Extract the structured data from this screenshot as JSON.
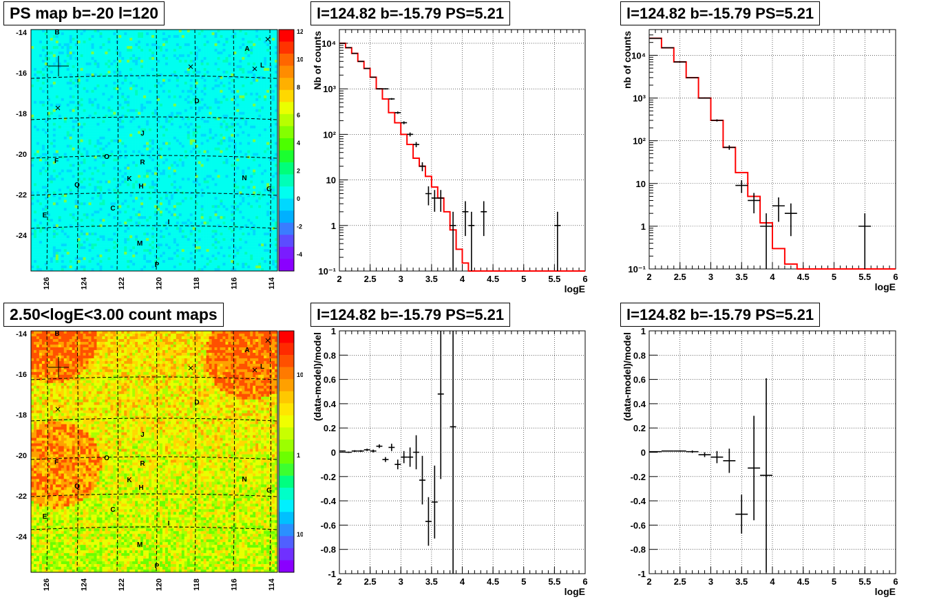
{
  "pads": {
    "map_top": {
      "title": "PS map b=-20 l=120"
    },
    "map_bottom": {
      "title": "2.50<logE<3.00 count maps"
    },
    "spec_a": {
      "title": "l=124.82 b=-15.79 PS=5.21"
    },
    "spec_b": {
      "title": "l=124.82 b=-15.79 PS=5.21"
    },
    "res_a": {
      "title": "l=124.82 b=-15.79 PS=5.21"
    },
    "res_b": {
      "title": "l=124.82 b=-15.79 PS=5.21"
    }
  },
  "colors": {
    "model": "#ff0000",
    "data": "#000000",
    "grid": "#000000"
  },
  "chart_data": [
    {
      "id": "map_top",
      "type": "heatmap",
      "title": "PS map b=-20 l=120",
      "xticks": [
        "126",
        "124",
        "122",
        "120",
        "118",
        "116",
        "114"
      ],
      "yticks": [
        "-14",
        "-16",
        "-18",
        "-20",
        "-22",
        "-24"
      ],
      "zticks": [
        "12",
        "10",
        "8",
        "6",
        "4",
        "2",
        "0",
        "-2",
        "-4"
      ],
      "sources": [
        "A",
        "B",
        "C",
        "D",
        "E",
        "F",
        "G",
        "H",
        "I",
        "J",
        "K",
        "L",
        "M",
        "N",
        "O",
        "P",
        "Q",
        "R"
      ]
    },
    {
      "id": "map_bottom",
      "type": "heatmap",
      "title": "2.50<logE<3.00 count maps",
      "xticks": [
        "126",
        "124",
        "122",
        "120",
        "118",
        "116",
        "114"
      ],
      "yticks": [
        "-14",
        "-16",
        "-18",
        "-20",
        "-22",
        "-24"
      ],
      "zticks": [
        "10",
        "1",
        "10⁻¹"
      ],
      "zscale": "log",
      "sources": [
        "A",
        "B",
        "C",
        "D",
        "E",
        "F",
        "G",
        "H",
        "I",
        "J",
        "K",
        "L",
        "M",
        "N",
        "O",
        "P",
        "Q",
        "R"
      ]
    },
    {
      "id": "spec_a",
      "type": "line",
      "title": "l=124.82 b=-15.79 PS=5.21",
      "xlabel": "logE",
      "ylabel": "Nb of counts",
      "yscale": "log",
      "xlim": [
        2,
        6
      ],
      "ylim": [
        0.1,
        20000
      ],
      "xticks": [
        "2",
        "2.5",
        "3",
        "3.5",
        "4",
        "4.5",
        "5",
        "5.5",
        "6"
      ],
      "yticks": [
        "10⁴",
        "10³",
        "10²",
        "10",
        "1",
        "10⁻¹"
      ],
      "grid": true,
      "series": [
        {
          "kind": "model-step",
          "edges": [
            2,
            2.1,
            2.2,
            2.3,
            2.4,
            2.5,
            2.6,
            2.7,
            2.8,
            2.9,
            3.0,
            3.1,
            3.2,
            3.3,
            3.4,
            3.5,
            3.6,
            3.7,
            3.8,
            3.9,
            4.0,
            4.1,
            4.2,
            6.0
          ],
          "values": [
            10000,
            8000,
            6000,
            4000,
            2800,
            1800,
            1000,
            600,
            300,
            180,
            100,
            60,
            30,
            20,
            12,
            7,
            4,
            2,
            0.8,
            0.3,
            0.15,
            0.1,
            0.1
          ]
        },
        {
          "kind": "data-points",
          "points": [
            [
              2.05,
              10000
            ],
            [
              2.15,
              8000
            ],
            [
              2.25,
              6000
            ],
            [
              2.35,
              4000
            ],
            [
              2.45,
              2800
            ],
            [
              2.55,
              1800
            ],
            [
              2.65,
              1000
            ],
            [
              2.75,
              1000
            ],
            [
              2.85,
              600
            ],
            [
              2.95,
              300
            ],
            [
              3.05,
              180
            ],
            [
              3.15,
              100
            ],
            [
              3.25,
              60
            ],
            [
              3.35,
              20
            ],
            [
              3.45,
              5
            ],
            [
              3.55,
              4
            ],
            [
              3.65,
              4
            ],
            [
              3.85,
              1
            ],
            [
              4.05,
              2
            ],
            [
              4.15,
              1
            ],
            [
              4.35,
              2
            ],
            [
              5.55,
              1
            ]
          ],
          "xerr": 0.05
        }
      ]
    },
    {
      "id": "spec_b",
      "type": "line",
      "title": "l=124.82 b=-15.79 PS=5.21",
      "xlabel": "logE",
      "ylabel": "nb of counts",
      "yscale": "log",
      "xlim": [
        2,
        6
      ],
      "ylim": [
        0.1,
        40000
      ],
      "xticks": [
        "2",
        "2.5",
        "3",
        "3.5",
        "4",
        "4.5",
        "5",
        "5.5",
        "6"
      ],
      "yticks": [
        "10⁴",
        "10³",
        "10²",
        "10",
        "1",
        "10⁻¹"
      ],
      "grid": true,
      "series": [
        {
          "kind": "model-step",
          "edges": [
            2.0,
            2.2,
            2.4,
            2.6,
            2.8,
            3.0,
            3.2,
            3.4,
            3.6,
            3.8,
            4.0,
            4.2,
            4.4,
            6.0
          ],
          "values": [
            25000,
            15000,
            7000,
            3000,
            1000,
            300,
            70,
            18,
            5,
            1.2,
            0.3,
            0.13,
            0.1
          ]
        },
        {
          "kind": "data-points",
          "points": [
            [
              2.1,
              25000
            ],
            [
              2.3,
              15000
            ],
            [
              2.5,
              7000
            ],
            [
              2.7,
              3000
            ],
            [
              2.9,
              1000
            ],
            [
              3.1,
              300
            ],
            [
              3.3,
              70
            ],
            [
              3.5,
              9
            ],
            [
              3.7,
              4
            ],
            [
              3.9,
              1
            ],
            [
              4.1,
              3
            ],
            [
              4.3,
              2
            ],
            [
              5.5,
              1
            ]
          ],
          "xerr": 0.1
        }
      ]
    },
    {
      "id": "res_a",
      "type": "scatter",
      "title": "l=124.82 b=-15.79 PS=5.21",
      "xlabel": "logE",
      "ylabel": "(data-model)/model",
      "xlim": [
        2,
        6
      ],
      "ylim": [
        -1,
        1
      ],
      "xticks": [
        "2",
        "2.5",
        "3",
        "3.5",
        "4",
        "4.5",
        "5",
        "5.5",
        "6"
      ],
      "yticks": [
        "1",
        "0.8",
        "0.6",
        "0.4",
        "0.2",
        "0",
        "-0.2",
        "-0.4",
        "-0.6",
        "-0.8",
        "-1"
      ],
      "grid": true,
      "points": [
        [
          2.05,
          0.01,
          0.005
        ],
        [
          2.15,
          0.0,
          0.006
        ],
        [
          2.25,
          0.01,
          0.007
        ],
        [
          2.35,
          0.01,
          0.008
        ],
        [
          2.45,
          0.02,
          0.01
        ],
        [
          2.55,
          0.01,
          0.012
        ],
        [
          2.65,
          0.05,
          0.015
        ],
        [
          2.75,
          -0.06,
          0.02
        ],
        [
          2.85,
          0.04,
          0.03
        ],
        [
          2.95,
          -0.1,
          0.04
        ],
        [
          3.05,
          -0.04,
          0.05
        ],
        [
          3.15,
          -0.04,
          0.08
        ],
        [
          3.25,
          0.0,
          0.14
        ],
        [
          3.35,
          -0.23,
          0.2
        ],
        [
          3.45,
          -0.57,
          0.2
        ],
        [
          3.55,
          -0.41,
          0.3
        ],
        [
          3.65,
          0.48,
          0.7
        ],
        [
          3.85,
          0.21,
          1.5
        ]
      ],
      "xerr": 0.05
    },
    {
      "id": "res_b",
      "type": "scatter",
      "title": "l=124.82 b=-15.79 PS=5.21",
      "xlabel": "logE",
      "ylabel": "(data-model)/model",
      "xlim": [
        2,
        6
      ],
      "ylim": [
        -1,
        1
      ],
      "xticks": [
        "2",
        "2.5",
        "3",
        "3.5",
        "4",
        "4.5",
        "5",
        "5.5",
        "6"
      ],
      "yticks": [
        "1",
        "0.8",
        "0.6",
        "0.4",
        "0.2",
        "0",
        "-0.2",
        "-0.4",
        "-0.6",
        "-0.8",
        "-1"
      ],
      "grid": true,
      "points": [
        [
          2.1,
          0.005,
          0.003
        ],
        [
          2.3,
          0.01,
          0.004
        ],
        [
          2.5,
          0.01,
          0.006
        ],
        [
          2.7,
          0.005,
          0.01
        ],
        [
          2.9,
          -0.02,
          0.02
        ],
        [
          3.1,
          -0.04,
          0.05
        ],
        [
          3.3,
          -0.07,
          0.1
        ],
        [
          3.5,
          -0.51,
          0.16
        ],
        [
          3.7,
          -0.13,
          0.43
        ],
        [
          3.9,
          -0.19,
          0.8
        ]
      ],
      "xerr": 0.1
    }
  ]
}
